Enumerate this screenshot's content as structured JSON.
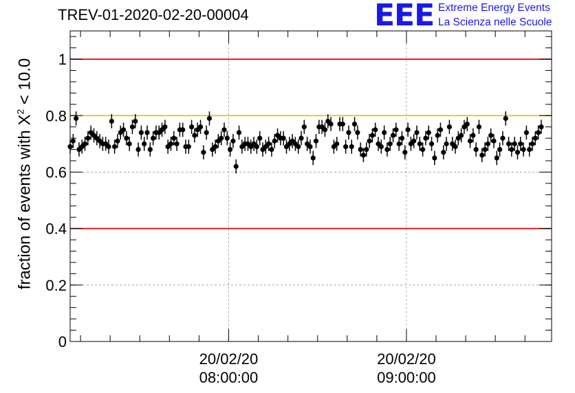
{
  "page": {
    "title": "TREV-01-2020-02-20-00004",
    "logo": {
      "mark": "EEE",
      "line1": "Extreme Energy Events",
      "line2": "La Scienza nelle Scuole"
    }
  },
  "chart_data": {
    "type": "scatter",
    "title": "TREV-01-2020-02-20-00004",
    "ylabel_parts": {
      "before": "fraction of events with X",
      "sup": "2",
      "after": " < 10.0"
    },
    "ylim": [
      0,
      1.1
    ],
    "y_ticks": [
      0,
      0.2,
      0.4,
      0.6,
      0.8,
      1
    ],
    "y_tick_labels": [
      "0",
      "0.2",
      "0.4",
      "0.6",
      "0.8",
      "1"
    ],
    "x_start": "20/02/20 07:06:30",
    "x_end": "20/02/20 09:49:00",
    "x_ticks": [
      {
        "time": "20/02/20 08:00:00",
        "date": "20/02/20",
        "clock": "08:00:00"
      },
      {
        "time": "20/02/20 09:00:00",
        "date": "20/02/20",
        "clock": "09:00:00"
      }
    ],
    "grid": true,
    "reference_lines": [
      {
        "y": 1.0,
        "color": "#e60000"
      },
      {
        "y": 0.8,
        "color": "#ffbb00"
      },
      {
        "y": 0.4,
        "color": "#e60000"
      }
    ],
    "error": 0.025,
    "series": [
      {
        "x_start": "20/02/20 07:06:30",
        "x_step_seconds": 60,
        "y": [
          0.69,
          0.71,
          0.79,
          0.68,
          0.69,
          0.7,
          0.72,
          0.74,
          0.73,
          0.72,
          0.71,
          0.7,
          0.7,
          0.69,
          0.78,
          0.69,
          0.71,
          0.74,
          0.75,
          0.72,
          0.7,
          0.76,
          0.78,
          0.68,
          0.74,
          0.7,
          0.74,
          0.68,
          0.72,
          0.74,
          0.74,
          0.75,
          0.76,
          0.69,
          0.7,
          0.72,
          0.7,
          0.75,
          0.75,
          0.69,
          0.69,
          0.76,
          0.73,
          0.75,
          0.76,
          0.67,
          0.74,
          0.79,
          0.68,
          0.69,
          0.71,
          0.72,
          0.75,
          0.72,
          0.68,
          0.71,
          0.62,
          0.74,
          0.69,
          0.7,
          0.7,
          0.69,
          0.7,
          0.69,
          0.72,
          0.68,
          0.69,
          0.7,
          0.68,
          0.71,
          0.73,
          0.72,
          0.72,
          0.69,
          0.7,
          0.71,
          0.7,
          0.69,
          0.72,
          0.76,
          0.7,
          0.69,
          0.65,
          0.71,
          0.76,
          0.76,
          0.75,
          0.78,
          0.77,
          0.69,
          0.7,
          0.77,
          0.77,
          0.69,
          0.74,
          0.69,
          0.77,
          0.74,
          0.68,
          0.66,
          0.68,
          0.71,
          0.73,
          0.75,
          0.7,
          0.69,
          0.74,
          0.68,
          0.7,
          0.73,
          0.75,
          0.7,
          0.72,
          0.67,
          0.75,
          0.7,
          0.71,
          0.74,
          0.7,
          0.68,
          0.72,
          0.74,
          0.7,
          0.65,
          0.73,
          0.75,
          0.67,
          0.7,
          0.76,
          0.7,
          0.69,
          0.72,
          0.73,
          0.76,
          0.77,
          0.71,
          0.73,
          0.68,
          0.76,
          0.66,
          0.68,
          0.7,
          0.73,
          0.71,
          0.65,
          0.68,
          0.72,
          0.79,
          0.7,
          0.68,
          0.7,
          0.67,
          0.7,
          0.68,
          0.74,
          0.68,
          0.7,
          0.72,
          0.74,
          0.76
        ]
      }
    ]
  }
}
